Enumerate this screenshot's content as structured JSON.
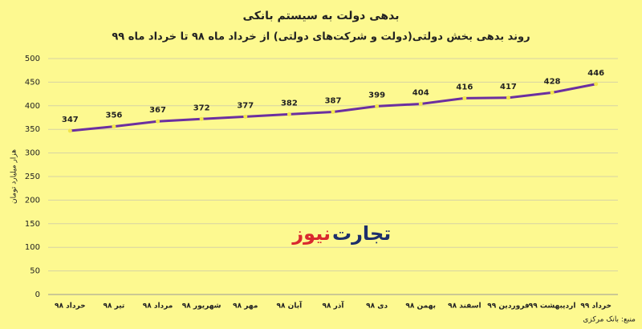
{
  "chart_data": {
    "type": "line",
    "title": "بدهی دولت به سیستم بانکی",
    "subtitle": "روند بدهی بخش دولتی(دولت و شرکت‌های دولتی) از خرداد ماه ۹۸ تا خرداد ماه ۹۹",
    "y_label": "هزار میلیارد تومان",
    "source": "منبع: بانک مرکزی",
    "logo": [
      "تجارت",
      "نیوز"
    ],
    "categories": [
      "خرداد ۹۸",
      "تیر ۹۸",
      "مرداد ۹۸",
      "شهریور ۹۸",
      "مهر ۹۸",
      "آبان ۹۸",
      "آذر ۹۸",
      "دی ۹۸",
      "بهمن ۹۸",
      "اسفند ۹۸",
      "فروردین ۹۹",
      "اردیبهشت ۹۹",
      "خرداد ۹۹"
    ],
    "values": [
      347,
      356,
      367,
      372,
      377,
      382,
      387,
      399,
      404,
      416,
      417,
      428,
      446
    ],
    "color": "#6b2fa0",
    "marker_color": "#f2e64a",
    "ylim": [
      0,
      500
    ],
    "yticks": [
      0,
      50,
      100,
      150,
      200,
      250,
      300,
      350,
      400,
      450,
      500
    ],
    "grid": true
  }
}
